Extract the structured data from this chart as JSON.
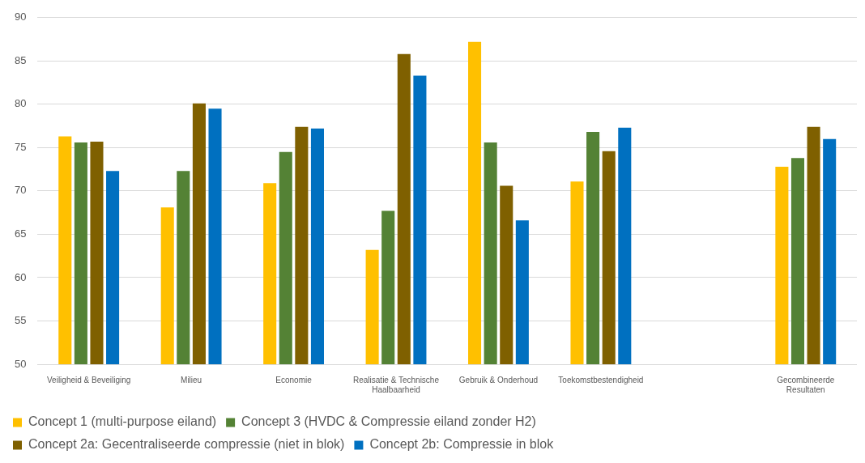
{
  "chart_data": {
    "type": "bar",
    "categories": [
      "Veiligheid & Beveiliging",
      "Milieu",
      "Economie",
      "Realisatie & Technische Haalbaarheid",
      "Gebruik & Onderhoud",
      "Toekomstbestendigheid",
      null,
      "Gecombineerde Resultaten"
    ],
    "series": [
      {
        "name": "Concept 1 (multi-purpose eiland)",
        "color": "#ffc000",
        "values": [
          76.3,
          68.1,
          70.9,
          63.2,
          87.2,
          71.1,
          null,
          72.8
        ]
      },
      {
        "name": "Concept 3 (HVDC & Compressie eiland zonder H2)",
        "color": "#548235",
        "values": [
          75.6,
          72.3,
          74.5,
          67.7,
          75.6,
          76.8,
          null,
          73.8
        ]
      },
      {
        "name": "Concept 2a: Gecentraliseerde compressie (niet in blok)",
        "color": "#7f6000",
        "values": [
          75.7,
          80.1,
          77.4,
          85.8,
          70.6,
          74.6,
          null,
          77.4
        ]
      },
      {
        "name": "Concept 2b: Compressie in blok",
        "color": "#0070c0",
        "values": [
          72.3,
          79.5,
          77.2,
          83.3,
          66.6,
          77.3,
          null,
          76.0
        ]
      }
    ],
    "ylim": [
      50,
      90
    ],
    "yticks": [
      50,
      55,
      60,
      65,
      70,
      75,
      80,
      85,
      90
    ],
    "grid": "y",
    "legend": "bottom"
  }
}
